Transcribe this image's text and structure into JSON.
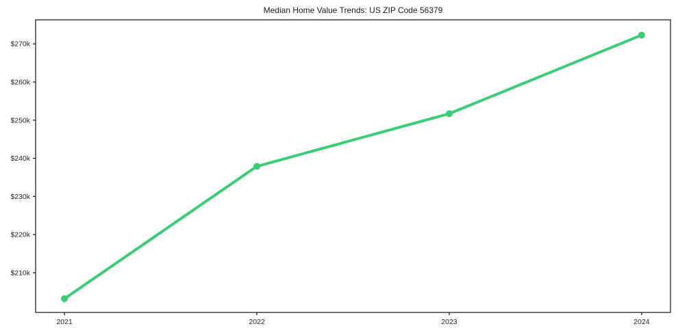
{
  "chart_data": {
    "type": "line",
    "title": "Median Home Value Trends: US ZIP Code 56379",
    "x": [
      2021,
      2022,
      2023,
      2024
    ],
    "x_tick_labels": [
      "2021",
      "2022",
      "2023",
      "2024"
    ],
    "series": [
      {
        "name": "Median Home Value",
        "values": [
          203200,
          237900,
          251700,
          272300
        ],
        "color": "#3bcc76",
        "marker": "circle"
      }
    ],
    "yticks": [
      210000,
      220000,
      230000,
      240000,
      250000,
      260000,
      270000
    ],
    "ytick_labels": [
      "$210k",
      "$220k",
      "$230k",
      "$240k",
      "$250k",
      "$260k",
      "$270k"
    ],
    "xlim": [
      2020.85,
      2024.15
    ],
    "ylim": [
      199600,
      276300
    ],
    "xlabel": "",
    "ylabel": "",
    "grid": false,
    "legend": "none"
  },
  "style": {
    "line_color": "#3bcc76",
    "text_color": "#1f1f1f",
    "spine_color": "#101010",
    "background": "#ffffff"
  }
}
